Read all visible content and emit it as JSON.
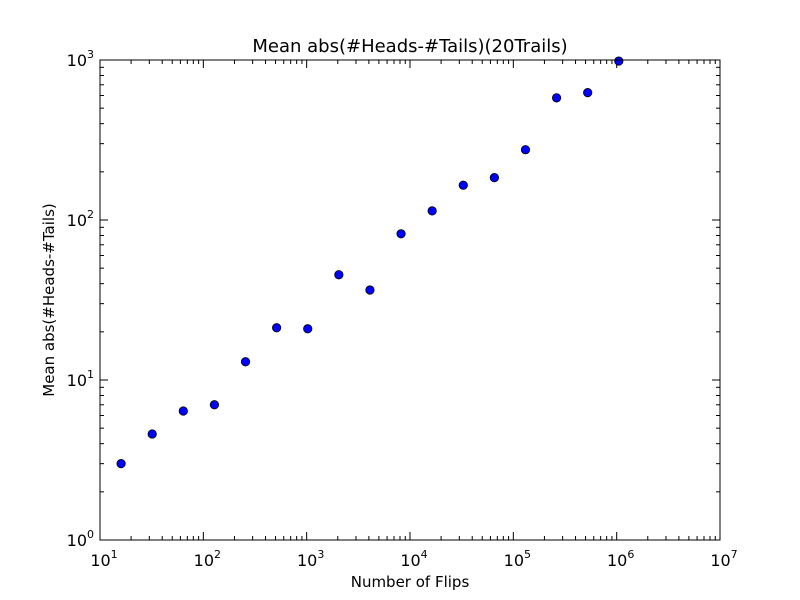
{
  "chart_data": {
    "type": "scatter",
    "title": "Mean abs(#Heads-#Tails)(20Trails)",
    "xlabel": "Number of Flips",
    "ylabel": "Mean abs(#Heads-#Tails)",
    "xscale": "log",
    "yscale": "log",
    "xlim": [
      10,
      10000000
    ],
    "ylim": [
      1,
      1000
    ],
    "x_ticks": [
      {
        "base": "10",
        "exp": "1"
      },
      {
        "base": "10",
        "exp": "2"
      },
      {
        "base": "10",
        "exp": "3"
      },
      {
        "base": "10",
        "exp": "4"
      },
      {
        "base": "10",
        "exp": "5"
      },
      {
        "base": "10",
        "exp": "6"
      },
      {
        "base": "10",
        "exp": "7"
      }
    ],
    "y_ticks": [
      {
        "base": "10",
        "exp": "0"
      },
      {
        "base": "10",
        "exp": "1"
      },
      {
        "base": "10",
        "exp": "2"
      },
      {
        "base": "10",
        "exp": "3"
      }
    ],
    "grid": false,
    "marker_color": "#0000ff",
    "x": [
      16,
      32,
      64,
      128,
      256,
      512,
      1024,
      2048,
      4096,
      8192,
      16384,
      32768,
      65536,
      131072,
      262144,
      524288,
      1048576
    ],
    "y": [
      3.0,
      4.6,
      6.4,
      7.0,
      13.0,
      21.2,
      20.9,
      45.5,
      36.5,
      82,
      114,
      165,
      184,
      275,
      580,
      625,
      985
    ]
  }
}
